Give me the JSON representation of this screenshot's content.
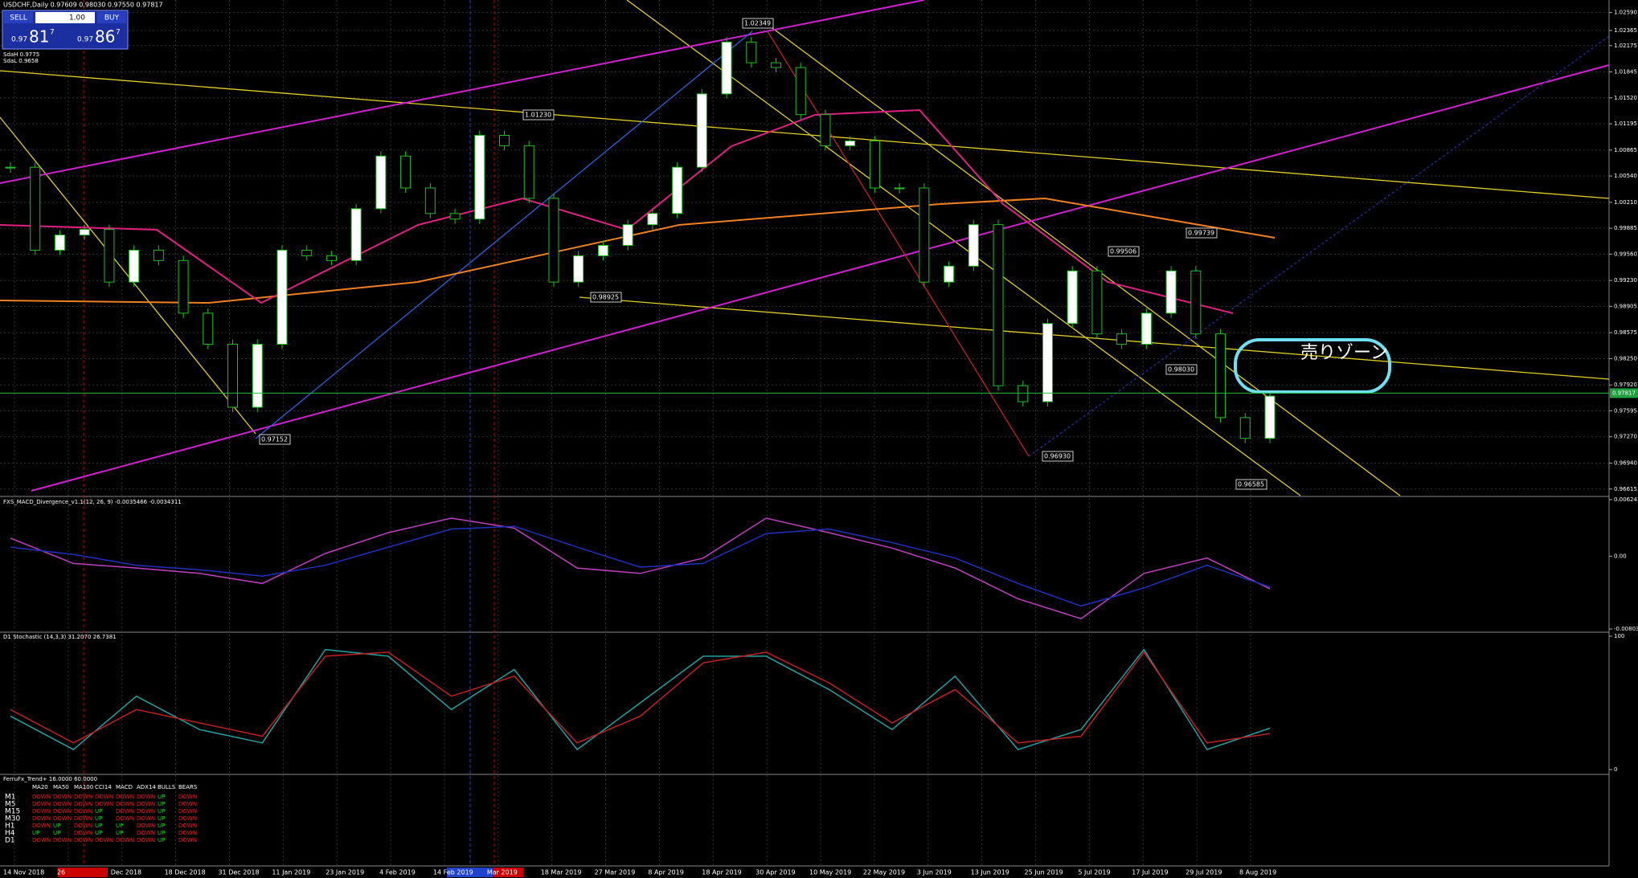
{
  "header": {
    "title": "USDCHF,Daily 0.97609 0.98030 0.97550 0.97817"
  },
  "trade_panel": {
    "sell": "SELL",
    "lot": "1.00",
    "buy": "BUY",
    "bid": {
      "big": "0.97",
      "mid": "81",
      "small": "7"
    },
    "ask": {
      "big": "0.97",
      "mid": "86",
      "small": "7"
    }
  },
  "levels": [
    "SdaH 0.9775",
    "SdaL 0.9658"
  ],
  "price_chart": {
    "ylim": [
      0.96532,
      1.02747
    ],
    "ticks": [
      {
        "value": 1.0259,
        "label": "1.02590"
      },
      1.02365,
      1.02175,
      1.01845,
      {
        "value": 1.0152,
        "label": "1.01520"
      },
      1.01195,
      1.00865,
      {
        "value": 1.0054,
        "label": "1.00540"
      },
      {
        "value": 1.0021,
        "label": "1.00210"
      },
      0.99885,
      {
        "value": 0.9956,
        "label": "0.99560"
      },
      {
        "value": 0.9923,
        "label": "0.99230"
      },
      0.98905,
      0.98575,
      {
        "value": 0.9825,
        "label": "0.98250"
      },
      {
        "value": 0.9792,
        "label": "0.97920"
      },
      0.97595,
      {
        "value": 0.9727,
        "label": "0.97270"
      },
      {
        "value": 0.9694,
        "label": "0.96940"
      },
      0.96615
    ],
    "current": 0.97817,
    "closes": [
      1.0065,
      0.9961,
      0.998,
      0.9987,
      0.9921,
      0.9961,
      0.9948,
      0.9882,
      0.9843,
      0.9764,
      0.9843,
      0.9961,
      0.9954,
      0.9948,
      1.0013,
      1.0079,
      1.0039,
      1.0007,
      1.0,
      1.0105,
      1.0092,
      1.0026,
      0.9921,
      0.9954,
      0.9967,
      0.9993,
      1.0007,
      1.0065,
      1.0157,
      1.0222,
      1.0196,
      1.019,
      1.0131,
      1.0092,
      1.0098,
      1.0039,
      1.0039,
      0.9921,
      0.9941,
      0.9993,
      0.9791,
      0.9771,
      0.9869,
      0.9935,
      0.9856,
      0.9843,
      0.9882,
      0.9935,
      0.9856,
      0.9751,
      0.9725,
      0.9778
    ],
    "pivots": [
      "1.02349",
      "1.01230",
      "0.98925",
      "0.97152",
      "0.96930",
      "0.99506",
      "0.99739",
      "0.98030",
      "0.96585"
    ],
    "annotation": "売りゾーン"
  },
  "macd": {
    "title": "FXS_MACD_Divergence_v1.1(12, 26, 9) -0.0035466 -0.0034311",
    "ylim": [
      -0.0080317,
      0.0062436
    ],
    "ticks": [
      0.0062436,
      {
        "value": 0,
        "label": "0.00"
      },
      -0.0080317
    ],
    "main": [
      0.002,
      -0.0008,
      -0.0013,
      -0.0019,
      -0.003,
      0.0003,
      0.0026,
      0.0042,
      0.0031,
      -0.0013,
      -0.0019,
      -0.0002,
      0.0042,
      0.0026,
      0.0009,
      -0.0013,
      -0.0047,
      -0.0069,
      -0.0019,
      -0.0002,
      -0.0036
    ],
    "signal": [
      0.001,
      0.0002,
      -0.001,
      -0.0015,
      -0.0022,
      -0.001,
      0.001,
      0.003,
      0.0033,
      0.001,
      -0.0012,
      -0.0008,
      0.0025,
      0.003,
      0.0015,
      -0.0002,
      -0.003,
      -0.0055,
      -0.0035,
      -0.001,
      -0.0034
    ]
  },
  "stochastic": {
    "title": "D1 Stochastic (14,3,3) 31.2070 26.7381",
    "ylim": [
      0,
      100
    ],
    "ticks": [
      100,
      0
    ],
    "main": [
      40,
      15,
      55,
      30,
      20,
      90,
      85,
      45,
      75,
      15,
      50,
      85,
      85,
      60,
      30,
      70,
      15,
      30,
      90,
      15,
      31
    ],
    "signal": [
      45,
      20,
      45,
      35,
      25,
      85,
      88,
      55,
      70,
      20,
      40,
      80,
      88,
      65,
      35,
      60,
      20,
      25,
      88,
      20,
      27
    ]
  },
  "trend_panel": {
    "title": "FerruFx_Trend+ 16.0000 60.0000",
    "headers": [
      "MA20",
      "MA50",
      "MA100",
      "CCI14",
      "MACD",
      "ADX14",
      "BULLS",
      "BEARS"
    ],
    "rows": [
      {
        "tf": "M1",
        "cells": [
          "DOWN",
          "DOWN",
          "DOWN",
          "DOWN",
          "DOWN",
          "DOWN",
          "UP",
          "DOWN"
        ]
      },
      {
        "tf": "M5",
        "cells": [
          "DOWN",
          "DOWN",
          "DOWN",
          "DOWN",
          "DOWN",
          "DOWN",
          "UP",
          "DOWN"
        ]
      },
      {
        "tf": "M15",
        "cells": [
          "DOWN",
          "DOWN",
          "DOWN",
          "UP",
          "DOWN",
          "DOWN",
          "UP",
          "DOWN"
        ]
      },
      {
        "tf": "M30",
        "cells": [
          "DOWN",
          "DOWN",
          "DOWN",
          "UP",
          "DOWN",
          "DOWN",
          "UP",
          "DOWN"
        ]
      },
      {
        "tf": "H1",
        "cells": [
          "DOWN",
          "UP",
          "DOWN",
          "UP",
          "UP",
          "DOWN",
          "UP",
          "DOWN"
        ]
      },
      {
        "tf": "H4",
        "cells": [
          "UP",
          "UP",
          "DOWN",
          "UP",
          "UP",
          "DOWN",
          "UP",
          "DOWN"
        ]
      },
      {
        "tf": "D1",
        "cells": [
          "DOWN",
          "DOWN",
          "DOWN",
          "DOWN",
          "DOWN",
          "DOWN",
          "UP",
          "DOWN"
        ]
      }
    ]
  },
  "dates": [
    "14 Nov 2018",
    "26",
    "Dec 2018",
    "18 Dec 2018",
    "31 Dec 2018",
    "11 Jan 2019",
    "23 Jan 2019",
    "4 Feb 2019",
    "14 Feb 2019",
    "Mar 2019",
    "18 Mar 2019",
    "27 Mar 2019",
    "8 Apr 2019",
    "18 Apr 2019",
    "30 Apr 2019",
    "10 May 2019",
    "22 May 2019",
    "3 Jun 2019",
    "13 Jun 2019",
    "25 Jun 2019",
    "5 Jul 2019",
    "17 Jul 2019",
    "29 Jul 2019",
    "8 Aug 2019"
  ]
}
